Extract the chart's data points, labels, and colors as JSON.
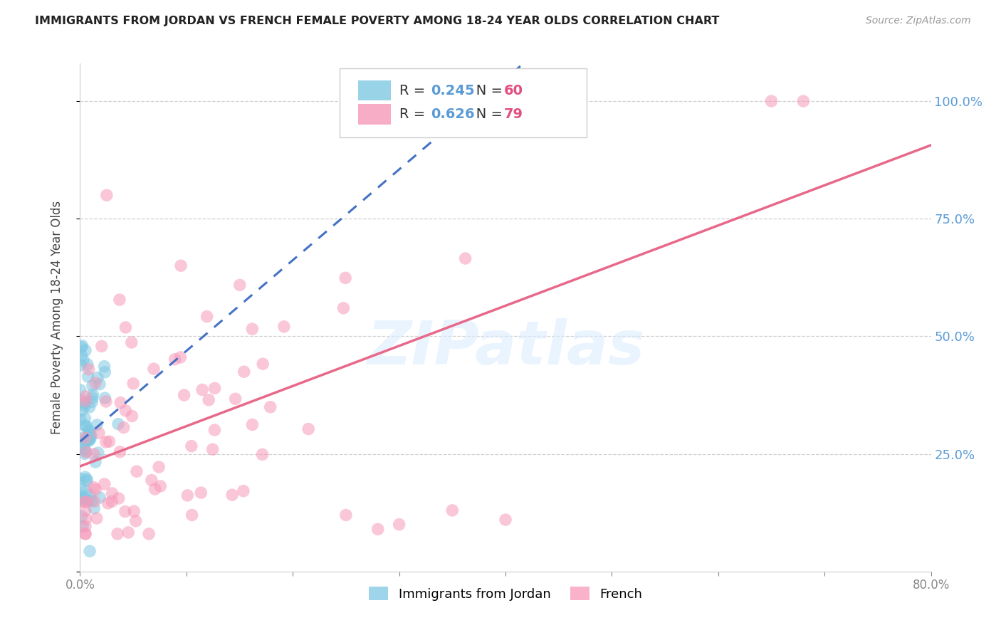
{
  "title": "IMMIGRANTS FROM JORDAN VS FRENCH FEMALE POVERTY AMONG 18-24 YEAR OLDS CORRELATION CHART",
  "source": "Source: ZipAtlas.com",
  "ylabel": "Female Poverty Among 18-24 Year Olds",
  "xmin": 0.0,
  "xmax": 0.8,
  "ymin": 0.0,
  "ymax": 1.08,
  "legend1_label": "Immigrants from Jordan",
  "legend2_label": "French",
  "R_jordan": 0.245,
  "N_jordan": 60,
  "R_french": 0.626,
  "N_french": 79,
  "scatter_jordan_color": "#7ec8e3",
  "scatter_french_color": "#f799b8",
  "line_jordan_color": "#4472c4",
  "line_french_color": "#e8688a",
  "background_color": "#ffffff",
  "grid_color": "#d0d0d0",
  "watermark": "ZIPatlas",
  "watermark_color": "#ddeeff",
  "title_color": "#222222",
  "source_color": "#999999",
  "ylabel_color": "#444444",
  "tick_color": "#888888",
  "right_tick_color": "#5b9bd5",
  "legend_R_color": "#5b9bd5",
  "legend_N_color": "#e05080"
}
